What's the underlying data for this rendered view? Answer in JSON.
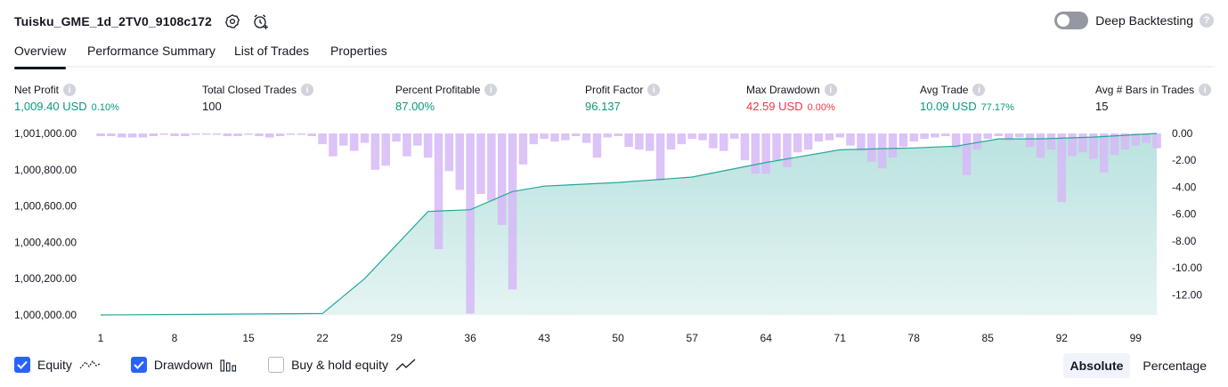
{
  "header": {
    "strategy_name": "Tuisku_GME_1d_2TV0_9108c172",
    "settings_icon": "gear-icon",
    "alert_icon": "add-alert-clock-icon"
  },
  "deep_backtesting": {
    "label": "Deep Backtesting",
    "enabled": false,
    "help": "?"
  },
  "tabs": [
    {
      "label": "Overview",
      "active": true
    },
    {
      "label": "Performance Summary",
      "active": false
    },
    {
      "label": "List of Trades",
      "active": false
    },
    {
      "label": "Properties",
      "active": false
    }
  ],
  "metrics": [
    {
      "label": "Net Profit",
      "value": "1,009.40 USD",
      "sub": "0.10%",
      "color": "green"
    },
    {
      "label": "Total Closed Trades",
      "value": "100",
      "sub": "",
      "color": "dark"
    },
    {
      "label": "Percent Profitable",
      "value": "87.00%",
      "sub": "",
      "color": "green"
    },
    {
      "label": "Profit Factor",
      "value": "96.137",
      "sub": "",
      "color": "green"
    },
    {
      "label": "Max Drawdown",
      "value": "42.59 USD",
      "sub": "0.00%",
      "color": "red"
    },
    {
      "label": "Avg Trade",
      "value": "10.09 USD",
      "sub": "77.17%",
      "color": "green"
    },
    {
      "label": "Avg # Bars in Trades",
      "value": "15",
      "sub": "",
      "color": "dark"
    }
  ],
  "legend": {
    "equity": {
      "label": "Equity",
      "checked": true
    },
    "drawdown": {
      "label": "Drawdown",
      "checked": true
    },
    "buy_hold": {
      "label": "Buy & hold equity",
      "checked": false
    }
  },
  "mode": {
    "absolute": "Absolute",
    "percentage": "Percentage",
    "selected": "Absolute"
  },
  "colors": {
    "green": "#089981",
    "red": "#f23645",
    "equity_line": "#26a69a",
    "drawdown_bar": "#d6b8f7",
    "accent": "#2962ff"
  },
  "chart_data": {
    "type": "area",
    "x_ticks": [
      1,
      8,
      15,
      22,
      29,
      36,
      43,
      50,
      57,
      64,
      71,
      78,
      85,
      92,
      99
    ],
    "x_range": [
      1,
      101
    ],
    "left_axis": {
      "ticks": [
        "1,001,000.00",
        "1,000,800.00",
        "1,000,600.00",
        "1,000,400.00",
        "1,000,200.00",
        "1,000,000.00"
      ],
      "range": [
        1000000,
        1001000
      ]
    },
    "right_axis": {
      "ticks": [
        "0.00",
        "-2.00",
        "-4.00",
        "-6.00",
        "-8.00",
        "-10.00",
        "-12.00"
      ],
      "range": [
        -13.5,
        0
      ]
    },
    "series": [
      {
        "name": "Equity",
        "kind": "area",
        "points": [
          [
            1,
            1000000
          ],
          [
            10,
            1000003
          ],
          [
            22,
            1000008
          ],
          [
            26,
            1000200
          ],
          [
            32,
            1000570
          ],
          [
            36,
            1000580
          ],
          [
            40,
            1000680
          ],
          [
            43,
            1000710
          ],
          [
            50,
            1000730
          ],
          [
            57,
            1000760
          ],
          [
            64,
            1000840
          ],
          [
            71,
            1000910
          ],
          [
            78,
            1000920
          ],
          [
            82,
            1000930
          ],
          [
            86,
            1000970
          ],
          [
            90,
            1000970
          ],
          [
            95,
            1000980
          ],
          [
            101,
            1001000
          ]
        ]
      },
      {
        "name": "Drawdown",
        "kind": "bar",
        "values": [
          -0.2,
          -0.2,
          -0.3,
          -0.3,
          -0.3,
          -0.2,
          -0.1,
          -0.2,
          -0.2,
          -0.1,
          -0.1,
          -0.1,
          -0.2,
          -0.2,
          -0.1,
          -0.2,
          -0.3,
          -0.2,
          -0.1,
          -0.1,
          -0.2,
          -0.8,
          -1.7,
          -0.9,
          -1.3,
          -0.7,
          -2.7,
          -2.4,
          -0.6,
          -1.7,
          -0.9,
          -1.8,
          -8.6,
          -2.8,
          -4.2,
          -13.4,
          -4.5,
          -5.0,
          -6.8,
          -11.6,
          -2.3,
          -0.8,
          -0.4,
          -0.6,
          -0.5,
          -0.2,
          -0.7,
          -1.8,
          -0.3,
          -0.2,
          -1.0,
          -1.2,
          -1.3,
          -3.5,
          -1.2,
          -0.8,
          -0.4,
          -0.5,
          -1.1,
          -1.3,
          -0.4,
          -2.0,
          -3.0,
          -3.0,
          -2.0,
          -2.5,
          -1.4,
          -1.2,
          -0.6,
          -0.5,
          -0.3,
          -0.9,
          -1.3,
          -2.1,
          -2.6,
          -1.8,
          -1.0,
          -0.6,
          -0.4,
          -0.3,
          -0.2,
          -1.1,
          -3.1,
          -1.2,
          -0.4,
          -0.2,
          -0.5,
          -0.3,
          -1.0,
          -1.8,
          -1.2,
          -5.1,
          -1.7,
          -1.4,
          -1.9,
          -2.9,
          -1.6,
          -1.2,
          -0.9,
          -0.7,
          -1.1
        ]
      }
    ]
  }
}
